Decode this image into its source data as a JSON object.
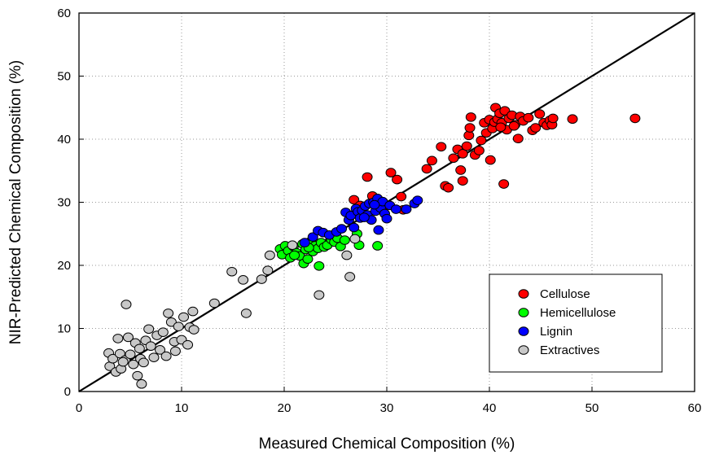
{
  "chart_data": {
    "type": "scatter",
    "title": "",
    "xlabel": "Measured Chemical Composition (%)",
    "ylabel": "NIR-Predicted Chemical Composition (%)",
    "xlim": [
      0,
      60
    ],
    "ylim": [
      0,
      60
    ],
    "xticks": [
      0,
      10,
      20,
      30,
      40,
      50,
      60
    ],
    "yticks": [
      0,
      10,
      20,
      30,
      40,
      50,
      60
    ],
    "grid": true,
    "legend_position": "bottom-right",
    "reference_line": {
      "x": [
        0,
        60
      ],
      "y": [
        0,
        60
      ]
    },
    "series": [
      {
        "name": "Cellulose",
        "color": "#ff0000",
        "points": [
          [
            26.8,
            30.4
          ],
          [
            28.1,
            34.0
          ],
          [
            30.4,
            34.7
          ],
          [
            31.0,
            33.6
          ],
          [
            31.4,
            30.9
          ],
          [
            31.6,
            28.8
          ],
          [
            28.6,
            31.0
          ],
          [
            27.4,
            29.5
          ],
          [
            29.6,
            28.7
          ],
          [
            33.9,
            35.3
          ],
          [
            34.4,
            36.6
          ],
          [
            35.3,
            38.8
          ],
          [
            35.7,
            32.6
          ],
          [
            36.0,
            32.3
          ],
          [
            36.5,
            37.0
          ],
          [
            36.9,
            38.4
          ],
          [
            37.2,
            35.1
          ],
          [
            37.4,
            33.4
          ],
          [
            37.4,
            37.7
          ],
          [
            37.8,
            38.9
          ],
          [
            38.0,
            40.6
          ],
          [
            38.1,
            41.8
          ],
          [
            38.2,
            43.5
          ],
          [
            38.6,
            37.5
          ],
          [
            39.0,
            38.2
          ],
          [
            39.2,
            39.8
          ],
          [
            39.5,
            42.6
          ],
          [
            39.7,
            41.0
          ],
          [
            40.0,
            43.1
          ],
          [
            40.1,
            36.7
          ],
          [
            40.3,
            41.7
          ],
          [
            40.5,
            42.7
          ],
          [
            40.6,
            45.0
          ],
          [
            40.8,
            43.2
          ],
          [
            41.0,
            44.1
          ],
          [
            41.2,
            42.6
          ],
          [
            41.4,
            32.9
          ],
          [
            41.5,
            44.5
          ],
          [
            41.7,
            41.5
          ],
          [
            41.9,
            43.3
          ],
          [
            42.2,
            43.8
          ],
          [
            42.5,
            42.3
          ],
          [
            42.8,
            40.1
          ],
          [
            43.0,
            43.6
          ],
          [
            43.3,
            42.9
          ],
          [
            43.8,
            43.4
          ],
          [
            44.2,
            41.4
          ],
          [
            44.5,
            41.8
          ],
          [
            44.9,
            44.0
          ],
          [
            45.3,
            42.6
          ],
          [
            45.6,
            42.2
          ],
          [
            45.9,
            43.0
          ],
          [
            46.1,
            42.3
          ],
          [
            46.2,
            43.3
          ],
          [
            48.1,
            43.2
          ],
          [
            54.2,
            43.3
          ],
          [
            42.4,
            42.1
          ],
          [
            41.1,
            41.9
          ]
        ]
      },
      {
        "name": "Hemicellulose",
        "color": "#00ff00",
        "points": [
          [
            19.6,
            22.6
          ],
          [
            19.8,
            21.7
          ],
          [
            20.1,
            23.1
          ],
          [
            20.4,
            22.3
          ],
          [
            20.6,
            21.2
          ],
          [
            20.9,
            23.0
          ],
          [
            21.2,
            22.0
          ],
          [
            21.5,
            21.5
          ],
          [
            21.8,
            23.4
          ],
          [
            21.9,
            20.3
          ],
          [
            22.1,
            22.5
          ],
          [
            22.3,
            21.0
          ],
          [
            22.6,
            23.8
          ],
          [
            22.8,
            22.2
          ],
          [
            23.0,
            23.1
          ],
          [
            23.3,
            22.7
          ],
          [
            23.4,
            19.9
          ],
          [
            23.6,
            23.6
          ],
          [
            23.9,
            22.9
          ],
          [
            24.2,
            23.2
          ],
          [
            24.6,
            24.1
          ],
          [
            24.9,
            23.7
          ],
          [
            25.2,
            24.3
          ],
          [
            25.5,
            23.0
          ],
          [
            25.9,
            24.0
          ],
          [
            27.1,
            25.0
          ],
          [
            27.3,
            23.2
          ],
          [
            29.1,
            23.1
          ],
          [
            21.0,
            21.6
          ],
          [
            22.4,
            22.8
          ]
        ]
      },
      {
        "name": "Lignin",
        "color": "#0000ff",
        "points": [
          [
            22.0,
            23.6
          ],
          [
            22.8,
            24.5
          ],
          [
            23.3,
            25.5
          ],
          [
            23.8,
            25.2
          ],
          [
            24.4,
            24.8
          ],
          [
            25.1,
            25.3
          ],
          [
            25.6,
            25.8
          ],
          [
            26.0,
            28.4
          ],
          [
            26.3,
            27.2
          ],
          [
            26.5,
            27.9
          ],
          [
            26.8,
            26.0
          ],
          [
            27.0,
            29.0
          ],
          [
            27.2,
            28.5
          ],
          [
            27.4,
            27.5
          ],
          [
            27.6,
            28.7
          ],
          [
            27.9,
            29.4
          ],
          [
            28.1,
            28.0
          ],
          [
            28.3,
            29.8
          ],
          [
            28.5,
            27.2
          ],
          [
            28.7,
            30.0
          ],
          [
            28.9,
            28.6
          ],
          [
            29.1,
            30.6
          ],
          [
            29.2,
            25.6
          ],
          [
            29.4,
            29.1
          ],
          [
            29.6,
            30.1
          ],
          [
            29.8,
            28.2
          ],
          [
            30.0,
            27.4
          ],
          [
            30.3,
            29.5
          ],
          [
            30.9,
            28.9
          ],
          [
            31.9,
            28.9
          ],
          [
            32.7,
            29.8
          ],
          [
            33.0,
            30.3
          ],
          [
            27.8,
            27.6
          ],
          [
            28.8,
            29.6
          ]
        ]
      },
      {
        "name": "Extractives",
        "color": "#c8c8c8",
        "points": [
          [
            2.9,
            6.1
          ],
          [
            3.0,
            4.0
          ],
          [
            3.3,
            5.2
          ],
          [
            3.6,
            3.1
          ],
          [
            3.8,
            8.4
          ],
          [
            4.0,
            6.0
          ],
          [
            4.1,
            3.6
          ],
          [
            4.5,
            5.0
          ],
          [
            4.6,
            13.8
          ],
          [
            4.8,
            8.6
          ],
          [
            5.0,
            5.9
          ],
          [
            5.3,
            4.3
          ],
          [
            5.5,
            7.7
          ],
          [
            5.7,
            2.5
          ],
          [
            5.9,
            6.8
          ],
          [
            6.0,
            5.2
          ],
          [
            6.1,
            1.2
          ],
          [
            6.3,
            4.6
          ],
          [
            6.5,
            8.1
          ],
          [
            6.8,
            9.9
          ],
          [
            7.0,
            7.2
          ],
          [
            7.3,
            5.4
          ],
          [
            7.6,
            8.9
          ],
          [
            7.9,
            6.6
          ],
          [
            8.2,
            9.4
          ],
          [
            8.5,
            5.6
          ],
          [
            8.7,
            12.4
          ],
          [
            9.0,
            11.0
          ],
          [
            9.3,
            7.9
          ],
          [
            9.7,
            10.3
          ],
          [
            10.0,
            8.2
          ],
          [
            10.2,
            11.8
          ],
          [
            10.6,
            7.4
          ],
          [
            10.8,
            10.2
          ],
          [
            11.1,
            12.7
          ],
          [
            11.2,
            9.8
          ],
          [
            13.2,
            14.0
          ],
          [
            14.9,
            19.0
          ],
          [
            16.0,
            17.7
          ],
          [
            16.3,
            12.4
          ],
          [
            17.8,
            17.8
          ],
          [
            18.4,
            19.2
          ],
          [
            18.6,
            21.6
          ],
          [
            20.8,
            23.2
          ],
          [
            23.4,
            15.3
          ],
          [
            26.1,
            21.6
          ],
          [
            26.4,
            18.2
          ],
          [
            26.9,
            24.2
          ],
          [
            9.4,
            6.4
          ],
          [
            4.3,
            4.7
          ]
        ]
      }
    ]
  }
}
